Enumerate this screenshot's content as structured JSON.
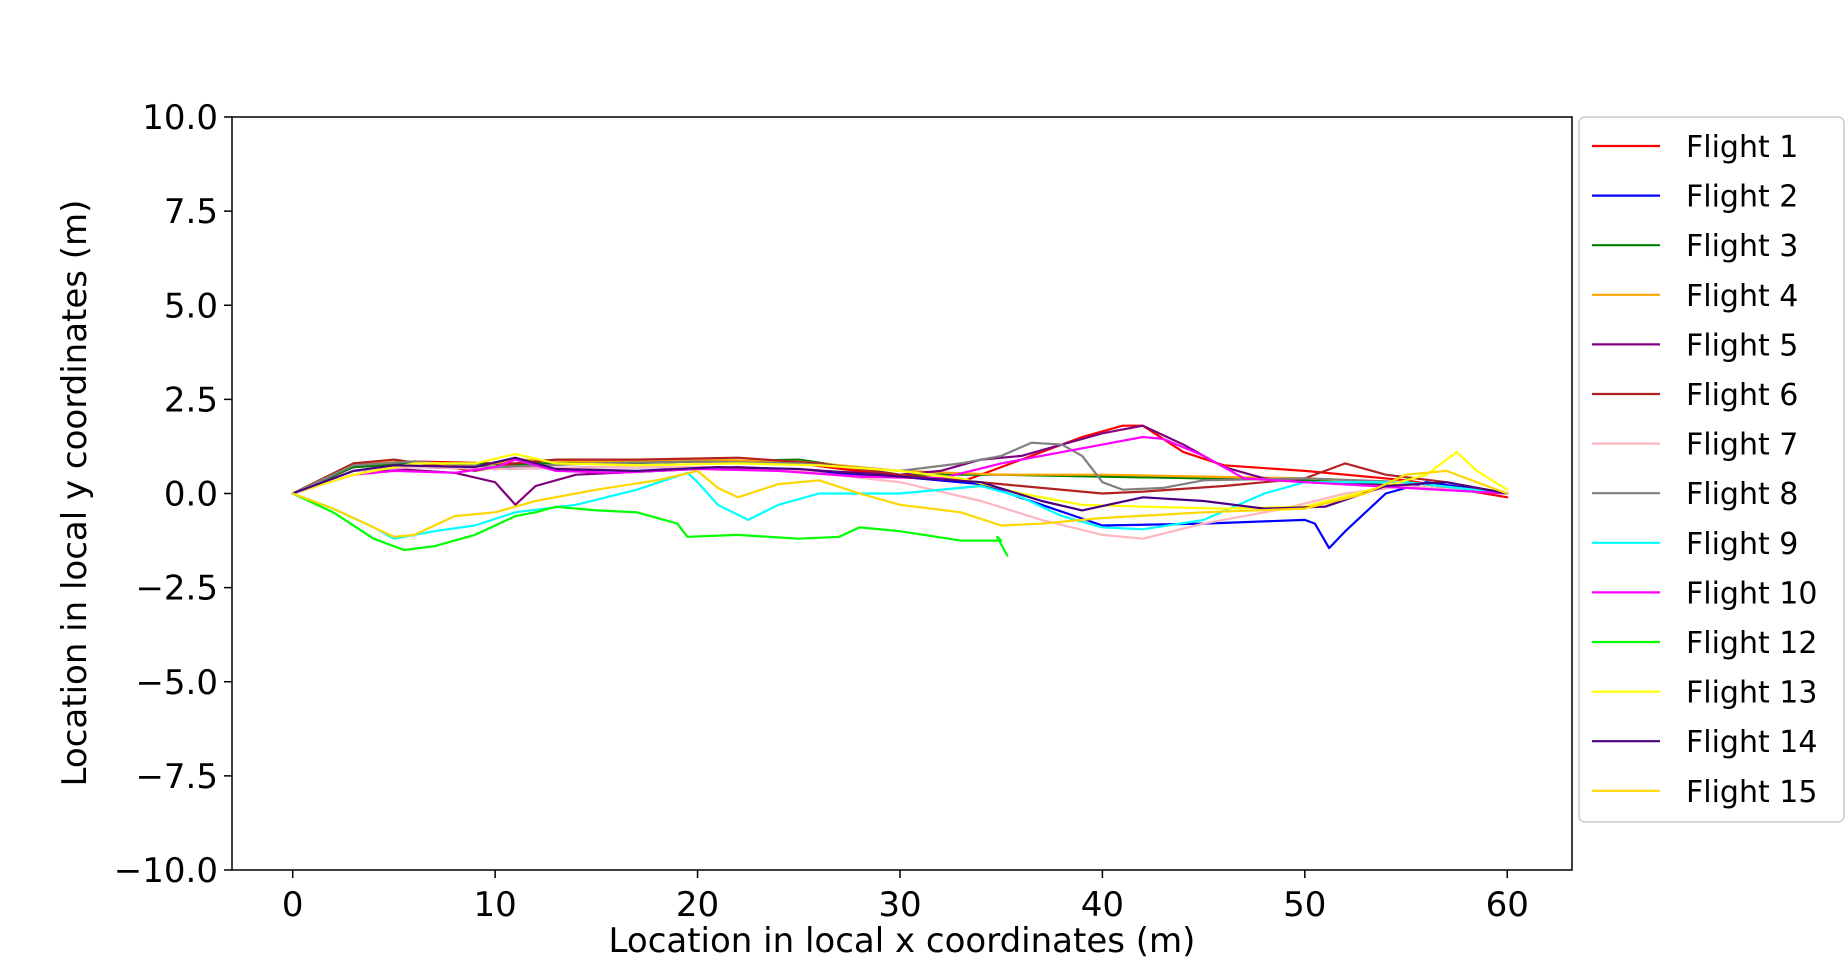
{
  "chart_data": {
    "type": "line",
    "xlabel": "Location in local x coordinates (m)",
    "ylabel": "Location in local y coordinates (m)",
    "xlim": [
      -3,
      63.2
    ],
    "ylim": [
      -10,
      10
    ],
    "xticks": [
      0,
      10,
      20,
      30,
      40,
      50,
      60
    ],
    "yticks": [
      10.0,
      7.5,
      5.0,
      2.5,
      0.0,
      -2.5,
      -5.0,
      -7.5,
      -10.0
    ],
    "xtick_labels": [
      "0",
      "10",
      "20",
      "30",
      "40",
      "50",
      "60"
    ],
    "ytick_labels": [
      "10.0",
      "7.5",
      "5.0",
      "2.5",
      "0.0",
      "−2.5",
      "−5.0",
      "−7.5",
      "−10.0"
    ],
    "grid": false,
    "legend_position": "outside right",
    "series": [
      {
        "name": "Flight 1",
        "color": "#ff0000",
        "points": [
          [
            0,
            0
          ],
          [
            3,
            0.7
          ],
          [
            6,
            0.85
          ],
          [
            10,
            0.8
          ],
          [
            15,
            0.8
          ],
          [
            20,
            0.85
          ],
          [
            25,
            0.8
          ],
          [
            30,
            0.45
          ],
          [
            33,
            0.3
          ],
          [
            36,
            0.9
          ],
          [
            39,
            1.5
          ],
          [
            41,
            1.8
          ],
          [
            42,
            1.8
          ],
          [
            44,
            1.1
          ],
          [
            46,
            0.75
          ],
          [
            50,
            0.6
          ],
          [
            55,
            0.35
          ],
          [
            60,
            -0.1
          ]
        ]
      },
      {
        "name": "Flight 2",
        "color": "#0000ff",
        "points": [
          [
            0,
            0
          ],
          [
            3,
            0.6
          ],
          [
            6,
            0.7
          ],
          [
            10,
            0.65
          ],
          [
            15,
            0.7
          ],
          [
            20,
            0.7
          ],
          [
            25,
            0.6
          ],
          [
            30,
            0.45
          ],
          [
            34,
            0.25
          ],
          [
            37,
            -0.3
          ],
          [
            40,
            -0.85
          ],
          [
            45,
            -0.8
          ],
          [
            50,
            -0.7
          ],
          [
            50.5,
            -0.8
          ],
          [
            51.2,
            -1.45
          ],
          [
            52,
            -1.0
          ],
          [
            54,
            0
          ],
          [
            56,
            0.3
          ],
          [
            60,
            0
          ]
        ]
      },
      {
        "name": "Flight 3",
        "color": "#008000",
        "points": [
          [
            0,
            0
          ],
          [
            3,
            0.7
          ],
          [
            6,
            0.8
          ],
          [
            9,
            0.8
          ],
          [
            11,
            0.75
          ],
          [
            12,
            0.8
          ],
          [
            16,
            0.8
          ],
          [
            20,
            0.85
          ],
          [
            25,
            0.9
          ],
          [
            30,
            0.5
          ],
          [
            35,
            0.5
          ],
          [
            40,
            0.45
          ],
          [
            45,
            0.4
          ],
          [
            50,
            0.35
          ],
          [
            55,
            0.2
          ],
          [
            60,
            0
          ]
        ]
      },
      {
        "name": "Flight 4",
        "color": "#ffa500",
        "points": [
          [
            0,
            0
          ],
          [
            3,
            0.8
          ],
          [
            6,
            0.85
          ],
          [
            9,
            0.7
          ],
          [
            11,
            0.9
          ],
          [
            15,
            0.85
          ],
          [
            20,
            0.9
          ],
          [
            25,
            0.85
          ],
          [
            30,
            0.6
          ],
          [
            35,
            0.5
          ],
          [
            40,
            0.5
          ],
          [
            45,
            0.45
          ],
          [
            50,
            0.4
          ],
          [
            55,
            0.3
          ],
          [
            60,
            0
          ]
        ]
      },
      {
        "name": "Flight 5",
        "color": "#800080",
        "points": [
          [
            0,
            0
          ],
          [
            3,
            0.5
          ],
          [
            5,
            0.65
          ],
          [
            8,
            0.55
          ],
          [
            10,
            0.3
          ],
          [
            11,
            -0.3
          ],
          [
            12,
            0.2
          ],
          [
            14,
            0.5
          ],
          [
            18,
            0.6
          ],
          [
            22,
            0.7
          ],
          [
            26,
            0.6
          ],
          [
            30,
            0.5
          ],
          [
            32,
            0.6
          ],
          [
            34,
            0.9
          ],
          [
            36,
            1.0
          ],
          [
            38,
            1.3
          ],
          [
            40,
            1.6
          ],
          [
            42,
            1.8
          ],
          [
            44,
            1.3
          ],
          [
            46,
            0.7
          ],
          [
            48,
            0.4
          ],
          [
            50,
            0.3
          ],
          [
            55,
            0.2
          ],
          [
            60,
            0
          ]
        ]
      },
      {
        "name": "Flight 6",
        "color": "#b22222",
        "points": [
          [
            0,
            0
          ],
          [
            3,
            0.8
          ],
          [
            5,
            0.9
          ],
          [
            9,
            0.6
          ],
          [
            11,
            0.8
          ],
          [
            13,
            0.9
          ],
          [
            17,
            0.9
          ],
          [
            22,
            0.95
          ],
          [
            26,
            0.8
          ],
          [
            30,
            0.5
          ],
          [
            33,
            0.35
          ],
          [
            36,
            0.2
          ],
          [
            40,
            0.0
          ],
          [
            42,
            0.05
          ],
          [
            46,
            0.2
          ],
          [
            50,
            0.4
          ],
          [
            52,
            0.8
          ],
          [
            54,
            0.5
          ],
          [
            57,
            0.3
          ],
          [
            60,
            0
          ]
        ]
      },
      {
        "name": "Flight 7",
        "color": "#ffb6c1",
        "points": [
          [
            0,
            0
          ],
          [
            3,
            0.6
          ],
          [
            6,
            0.7
          ],
          [
            10,
            0.65
          ],
          [
            15,
            0.7
          ],
          [
            20,
            0.7
          ],
          [
            25,
            0.6
          ],
          [
            30,
            0.3
          ],
          [
            34,
            -0.2
          ],
          [
            37,
            -0.7
          ],
          [
            40,
            -1.1
          ],
          [
            42,
            -1.2
          ],
          [
            45,
            -0.8
          ],
          [
            49,
            -0.4
          ],
          [
            52,
            0.0
          ],
          [
            55,
            0.2
          ],
          [
            60,
            0
          ]
        ]
      },
      {
        "name": "Flight 8",
        "color": "#808080",
        "points": [
          [
            0,
            0
          ],
          [
            3,
            0.75
          ],
          [
            6,
            0.85
          ],
          [
            10,
            0.7
          ],
          [
            15,
            0.8
          ],
          [
            20,
            0.85
          ],
          [
            25,
            0.8
          ],
          [
            30,
            0.6
          ],
          [
            33,
            0.8
          ],
          [
            35,
            1.0
          ],
          [
            36.5,
            1.35
          ],
          [
            38,
            1.3
          ],
          [
            39,
            1.0
          ],
          [
            40,
            0.3
          ],
          [
            41,
            0.1
          ],
          [
            43,
            0.15
          ],
          [
            45,
            0.35
          ],
          [
            50,
            0.4
          ],
          [
            55,
            0.3
          ],
          [
            60,
            0
          ]
        ]
      },
      {
        "name": "Flight 9",
        "color": "#00ffff",
        "points": [
          [
            0,
            0
          ],
          [
            2,
            -0.4
          ],
          [
            4,
            -0.9
          ],
          [
            5,
            -1.2
          ],
          [
            7,
            -1.0
          ],
          [
            9,
            -0.85
          ],
          [
            11,
            -0.5
          ],
          [
            14,
            -0.3
          ],
          [
            17,
            0.1
          ],
          [
            19.5,
            0.55
          ],
          [
            20,
            0.3
          ],
          [
            21,
            -0.3
          ],
          [
            22.5,
            -0.7
          ],
          [
            24,
            -0.3
          ],
          [
            26,
            0.0
          ],
          [
            30,
            0.0
          ],
          [
            34,
            0.2
          ],
          [
            36,
            -0.1
          ],
          [
            38,
            -0.6
          ],
          [
            40,
            -0.9
          ],
          [
            42,
            -0.95
          ],
          [
            45,
            -0.7
          ],
          [
            48,
            0.0
          ],
          [
            50,
            0.3
          ],
          [
            55,
            0.3
          ],
          [
            60,
            0
          ]
        ]
      },
      {
        "name": "Flight 10",
        "color": "#ff00ff",
        "points": [
          [
            0,
            0
          ],
          [
            3,
            0.5
          ],
          [
            5,
            0.6
          ],
          [
            8,
            0.55
          ],
          [
            10,
            0.7
          ],
          [
            11,
            0.9
          ],
          [
            13,
            0.6
          ],
          [
            16,
            0.55
          ],
          [
            20,
            0.65
          ],
          [
            24,
            0.6
          ],
          [
            28,
            0.45
          ],
          [
            32,
            0.4
          ],
          [
            35,
            0.8
          ],
          [
            38,
            1.1
          ],
          [
            40,
            1.3
          ],
          [
            42,
            1.5
          ],
          [
            43,
            1.45
          ],
          [
            45,
            1.0
          ],
          [
            47,
            0.4
          ],
          [
            50,
            0.3
          ],
          [
            55,
            0.15
          ],
          [
            60,
            0
          ]
        ]
      },
      {
        "name": "Flight 12",
        "color": "#00ff00",
        "points": [
          [
            0,
            0
          ],
          [
            2,
            -0.5
          ],
          [
            4,
            -1.2
          ],
          [
            5.5,
            -1.5
          ],
          [
            7,
            -1.4
          ],
          [
            9,
            -1.1
          ],
          [
            11,
            -0.6
          ],
          [
            12,
            -0.5
          ],
          [
            13,
            -0.35
          ],
          [
            15,
            -0.45
          ],
          [
            17,
            -0.5
          ],
          [
            19,
            -0.8
          ],
          [
            19.5,
            -1.15
          ],
          [
            22,
            -1.1
          ],
          [
            25,
            -1.2
          ],
          [
            27,
            -1.15
          ],
          [
            28,
            -0.9
          ],
          [
            30,
            -1.0
          ],
          [
            33,
            -1.25
          ],
          [
            35,
            -1.25
          ],
          [
            34.8,
            -1.15
          ],
          [
            35.3,
            -1.65
          ]
        ]
      },
      {
        "name": "Flight 13",
        "color": "#ffff00",
        "points": [
          [
            0,
            0
          ],
          [
            3,
            0.5
          ],
          [
            6,
            0.8
          ],
          [
            9,
            0.8
          ],
          [
            11,
            1.05
          ],
          [
            13,
            0.8
          ],
          [
            17,
            0.75
          ],
          [
            22,
            0.8
          ],
          [
            26,
            0.75
          ],
          [
            30,
            0.6
          ],
          [
            33,
            0.4
          ],
          [
            36,
            0.0
          ],
          [
            39,
            -0.3
          ],
          [
            42,
            -0.35
          ],
          [
            46,
            -0.4
          ],
          [
            50,
            -0.35
          ],
          [
            54,
            0.2
          ],
          [
            56,
            0.5
          ],
          [
            57.5,
            1.1
          ],
          [
            58.5,
            0.6
          ],
          [
            60,
            0.1
          ]
        ]
      },
      {
        "name": "Flight 14",
        "color": "#4b0082",
        "points": [
          [
            0,
            0
          ],
          [
            3,
            0.6
          ],
          [
            5,
            0.75
          ],
          [
            9,
            0.7
          ],
          [
            11,
            0.95
          ],
          [
            13,
            0.65
          ],
          [
            17,
            0.6
          ],
          [
            21,
            0.7
          ],
          [
            25,
            0.65
          ],
          [
            30,
            0.45
          ],
          [
            34,
            0.3
          ],
          [
            37,
            -0.2
          ],
          [
            39,
            -0.45
          ],
          [
            42,
            -0.1
          ],
          [
            45,
            -0.2
          ],
          [
            48,
            -0.4
          ],
          [
            51,
            -0.35
          ],
          [
            54,
            0.2
          ],
          [
            57,
            0.3
          ],
          [
            60,
            0
          ]
        ]
      },
      {
        "name": "Flight 15",
        "color": "#ffd700",
        "points": [
          [
            0,
            0
          ],
          [
            2,
            -0.4
          ],
          [
            4,
            -0.9
          ],
          [
            5,
            -1.15
          ],
          [
            6,
            -1.1
          ],
          [
            8,
            -0.6
          ],
          [
            10,
            -0.5
          ],
          [
            12,
            -0.2
          ],
          [
            15,
            0.1
          ],
          [
            18,
            0.35
          ],
          [
            20,
            0.6
          ],
          [
            21,
            0.15
          ],
          [
            22,
            -0.1
          ],
          [
            24,
            0.25
          ],
          [
            26,
            0.35
          ],
          [
            28,
            0.0
          ],
          [
            30,
            -0.3
          ],
          [
            33,
            -0.5
          ],
          [
            35,
            -0.85
          ],
          [
            37,
            -0.8
          ],
          [
            40,
            -0.65
          ],
          [
            45,
            -0.5
          ],
          [
            50,
            -0.4
          ],
          [
            53,
            0.0
          ],
          [
            55,
            0.5
          ],
          [
            57,
            0.6
          ],
          [
            58.5,
            0.3
          ],
          [
            60,
            0.0
          ]
        ]
      }
    ]
  }
}
